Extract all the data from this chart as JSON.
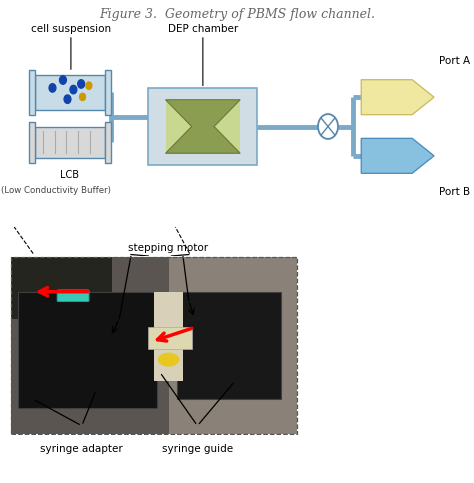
{
  "title": "Figure 3.  Geometry of PBMS flow channel.",
  "title_fontsize": 9,
  "title_color": "#666666",
  "label_cell_suspension": "cell suspension",
  "label_dep_chamber": "DEP chamber",
  "label_port_a": "Port A",
  "label_port_b": "Port B",
  "label_lcb": "LCB",
  "label_lcb_sub": "(Low Conductivity Buffer)",
  "label_stepping_motor": "stepping motor",
  "label_syringe_adapter": "syringe adapter",
  "label_syringe_guide": "syringe guide",
  "bg_color": "#ffffff",
  "syringe_top_color": "#c8dce8",
  "syringe_bot_color": "#d8d8d8",
  "syringe_border": "#5588aa",
  "dot_color": "#1144aa",
  "dot_color2": "#cc9900",
  "line_color": "#aaaaaa",
  "tube_color": "#7aaac8",
  "dep_outer_fill": "#d0dde5",
  "dep_outer_border": "#7aaac8",
  "dep_inner_fill": "#8a9d50",
  "dep_inner_border": "#6a7838",
  "dep_inner_light": "#c8d890",
  "port_a_fill": "#f0e8a0",
  "port_a_border": "#c8b860",
  "port_b_fill": "#88c0e0",
  "port_b_border": "#4888b8",
  "valve_fill": "#ffffff",
  "valve_border": "#5588aa",
  "photo_bg": "#3a3530",
  "photo_bench": "#5a5550",
  "photo_left_box": "#181818",
  "photo_right_box": "#202020",
  "photo_center_light": "#d8d0c0",
  "photo_teal": "#38c8b8",
  "photo_yellow": "#e8c820",
  "photo_label_sticker": "#ddd8b0"
}
